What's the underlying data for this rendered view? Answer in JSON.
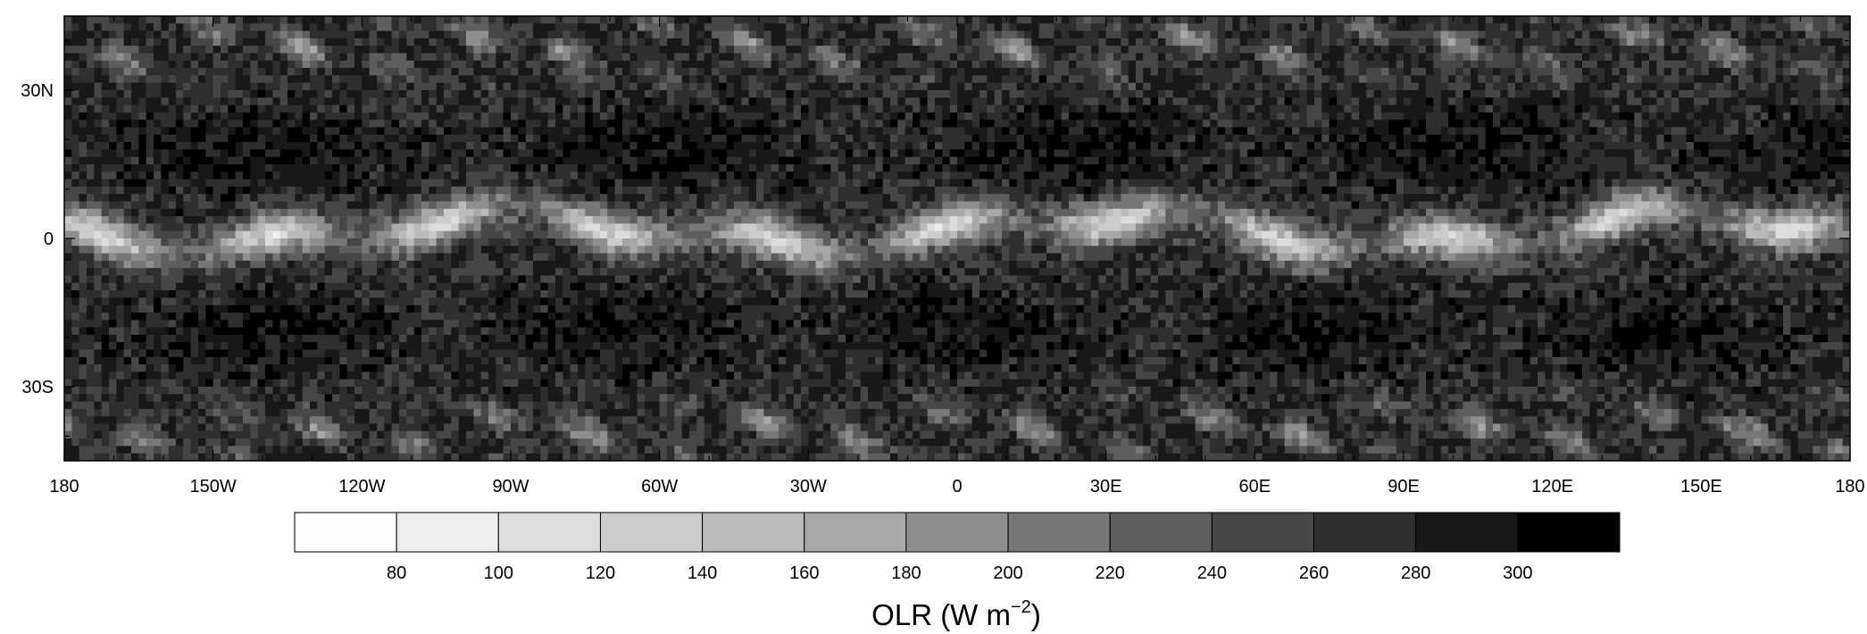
{
  "chart_data": {
    "type": "heatmap",
    "title": "OLR (W m⁻²)",
    "title_parts": {
      "base": "OLR (W m",
      "sup": "−2",
      "tail": ")"
    },
    "x_ticks": [
      "180",
      "150W",
      "120W",
      "90W",
      "60W",
      "30W",
      "0",
      "30E",
      "60E",
      "90E",
      "120E",
      "150E",
      "180"
    ],
    "x_tick_values": [
      -180,
      -150,
      -120,
      -90,
      -60,
      -30,
      0,
      30,
      60,
      90,
      120,
      150,
      180
    ],
    "y_ticks": [
      "30N",
      "0",
      "30S"
    ],
    "y_tick_values": [
      30,
      0,
      -30
    ],
    "xlim": [
      -180,
      180
    ],
    "ylim": [
      -45,
      45
    ],
    "colorbar": {
      "labels": [
        "80",
        "100",
        "120",
        "140",
        "160",
        "180",
        "200",
        "220",
        "240",
        "260",
        "280",
        "300"
      ],
      "boundaries": [
        80,
        100,
        120,
        140,
        160,
        180,
        200,
        220,
        240,
        260,
        280,
        300
      ],
      "colors": [
        "#fbfbfb",
        "#ededed",
        "#dddddd",
        "#cccccc",
        "#bbbbbb",
        "#a8a8a8",
        "#8e8e8e",
        "#777777",
        "#5e5e5e",
        "#464646",
        "#2e2e2e",
        "#181818",
        "#000000"
      ],
      "orientation": "horizontal",
      "placement": "below"
    },
    "color_scale": "grayscale, low OLR white (cold cloud tops), high OLR black",
    "background_olr": 272
  }
}
